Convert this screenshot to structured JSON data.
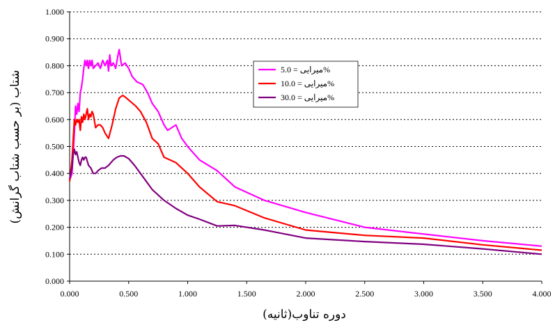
{
  "chart_data": {
    "type": "line",
    "xlabel": "دوره تناوب(ثانیه)",
    "ylabel": "شتاب (بر حسب شتاب گرانش)",
    "xlim": [
      0,
      4
    ],
    "ylim": [
      0,
      1
    ],
    "x_ticks": [
      "0.000",
      "0.500",
      "1.000",
      "1.500",
      "2.000",
      "2.500",
      "3.000",
      "3.500",
      "4.000"
    ],
    "y_ticks": [
      "0.000",
      "0.100",
      "0.200",
      "0.300",
      "0.400",
      "0.500",
      "0.600",
      "0.700",
      "0.800",
      "0.900",
      "1.000"
    ],
    "grid": "horizontal-dotted",
    "legend_position": "top-center",
    "series": [
      {
        "name": "میرایی = 5.0%",
        "color": "#ff00ff",
        "points": [
          [
            0.0,
            0.375
          ],
          [
            0.02,
            0.4
          ],
          [
            0.04,
            0.55
          ],
          [
            0.05,
            0.65
          ],
          [
            0.06,
            0.62
          ],
          [
            0.07,
            0.66
          ],
          [
            0.08,
            0.63
          ],
          [
            0.09,
            0.7
          ],
          [
            0.1,
            0.72
          ],
          [
            0.11,
            0.75
          ],
          [
            0.12,
            0.79
          ],
          [
            0.13,
            0.82
          ],
          [
            0.14,
            0.8
          ],
          [
            0.15,
            0.82
          ],
          [
            0.16,
            0.79
          ],
          [
            0.17,
            0.82
          ],
          [
            0.18,
            0.8
          ],
          [
            0.19,
            0.82
          ],
          [
            0.2,
            0.79
          ],
          [
            0.22,
            0.8
          ],
          [
            0.24,
            0.81
          ],
          [
            0.26,
            0.79
          ],
          [
            0.28,
            0.82
          ],
          [
            0.3,
            0.8
          ],
          [
            0.32,
            0.82
          ],
          [
            0.33,
            0.78
          ],
          [
            0.34,
            0.84
          ],
          [
            0.35,
            0.8
          ],
          [
            0.37,
            0.81
          ],
          [
            0.39,
            0.79
          ],
          [
            0.41,
            0.84
          ],
          [
            0.42,
            0.86
          ],
          [
            0.44,
            0.8
          ],
          [
            0.47,
            0.81
          ],
          [
            0.5,
            0.79
          ],
          [
            0.53,
            0.76
          ],
          [
            0.57,
            0.74
          ],
          [
            0.62,
            0.73
          ],
          [
            0.66,
            0.7
          ],
          [
            0.7,
            0.66
          ],
          [
            0.75,
            0.63
          ],
          [
            0.8,
            0.58
          ],
          [
            0.83,
            0.56
          ],
          [
            0.9,
            0.58
          ],
          [
            0.95,
            0.53
          ],
          [
            1.0,
            0.5
          ],
          [
            1.1,
            0.45
          ],
          [
            1.25,
            0.41
          ],
          [
            1.4,
            0.35
          ],
          [
            1.65,
            0.3
          ],
          [
            2.0,
            0.255
          ],
          [
            2.5,
            0.2
          ],
          [
            3.0,
            0.175
          ],
          [
            3.5,
            0.15
          ],
          [
            4.0,
            0.13
          ]
        ]
      },
      {
        "name": "میرایی = 10.0%",
        "color": "#ff0000",
        "points": [
          [
            0.0,
            0.37
          ],
          [
            0.02,
            0.45
          ],
          [
            0.04,
            0.6
          ],
          [
            0.05,
            0.58
          ],
          [
            0.06,
            0.6
          ],
          [
            0.07,
            0.59
          ],
          [
            0.08,
            0.6
          ],
          [
            0.09,
            0.56
          ],
          [
            0.1,
            0.61
          ],
          [
            0.11,
            0.59
          ],
          [
            0.12,
            0.62
          ],
          [
            0.13,
            0.6
          ],
          [
            0.14,
            0.62
          ],
          [
            0.15,
            0.64
          ],
          [
            0.16,
            0.6
          ],
          [
            0.17,
            0.62
          ],
          [
            0.18,
            0.61
          ],
          [
            0.19,
            0.63
          ],
          [
            0.2,
            0.62
          ],
          [
            0.22,
            0.57
          ],
          [
            0.24,
            0.58
          ],
          [
            0.26,
            0.58
          ],
          [
            0.28,
            0.57
          ],
          [
            0.3,
            0.55
          ],
          [
            0.33,
            0.53
          ],
          [
            0.36,
            0.58
          ],
          [
            0.39,
            0.64
          ],
          [
            0.42,
            0.68
          ],
          [
            0.45,
            0.69
          ],
          [
            0.48,
            0.68
          ],
          [
            0.52,
            0.665
          ],
          [
            0.56,
            0.65
          ],
          [
            0.6,
            0.63
          ],
          [
            0.65,
            0.59
          ],
          [
            0.7,
            0.53
          ],
          [
            0.75,
            0.51
          ],
          [
            0.8,
            0.46
          ],
          [
            0.85,
            0.45
          ],
          [
            0.9,
            0.44
          ],
          [
            1.0,
            0.4
          ],
          [
            1.1,
            0.35
          ],
          [
            1.25,
            0.295
          ],
          [
            1.4,
            0.28
          ],
          [
            1.65,
            0.235
          ],
          [
            2.0,
            0.19
          ],
          [
            2.5,
            0.17
          ],
          [
            3.0,
            0.16
          ],
          [
            3.5,
            0.135
          ],
          [
            4.0,
            0.115
          ]
        ]
      },
      {
        "name": "میرایی = 30.0%",
        "color": "#800080",
        "points": [
          [
            0.0,
            0.38
          ],
          [
            0.02,
            0.42
          ],
          [
            0.03,
            0.47
          ],
          [
            0.04,
            0.49
          ],
          [
            0.05,
            0.47
          ],
          [
            0.06,
            0.48
          ],
          [
            0.07,
            0.46
          ],
          [
            0.08,
            0.44
          ],
          [
            0.09,
            0.43
          ],
          [
            0.1,
            0.45
          ],
          [
            0.11,
            0.46
          ],
          [
            0.12,
            0.45
          ],
          [
            0.13,
            0.46
          ],
          [
            0.14,
            0.46
          ],
          [
            0.16,
            0.43
          ],
          [
            0.18,
            0.42
          ],
          [
            0.2,
            0.4
          ],
          [
            0.22,
            0.4
          ],
          [
            0.24,
            0.41
          ],
          [
            0.27,
            0.42
          ],
          [
            0.3,
            0.42
          ],
          [
            0.33,
            0.43
          ],
          [
            0.37,
            0.45
          ],
          [
            0.4,
            0.46
          ],
          [
            0.43,
            0.465
          ],
          [
            0.46,
            0.465
          ],
          [
            0.5,
            0.455
          ],
          [
            0.55,
            0.43
          ],
          [
            0.6,
            0.4
          ],
          [
            0.65,
            0.37
          ],
          [
            0.7,
            0.34
          ],
          [
            0.75,
            0.32
          ],
          [
            0.8,
            0.3
          ],
          [
            0.9,
            0.27
          ],
          [
            1.0,
            0.245
          ],
          [
            1.1,
            0.23
          ],
          [
            1.25,
            0.205
          ],
          [
            1.4,
            0.207
          ],
          [
            1.65,
            0.19
          ],
          [
            2.0,
            0.16
          ],
          [
            2.5,
            0.147
          ],
          [
            3.0,
            0.137
          ],
          [
            3.5,
            0.12
          ],
          [
            4.0,
            0.1
          ]
        ]
      }
    ]
  }
}
